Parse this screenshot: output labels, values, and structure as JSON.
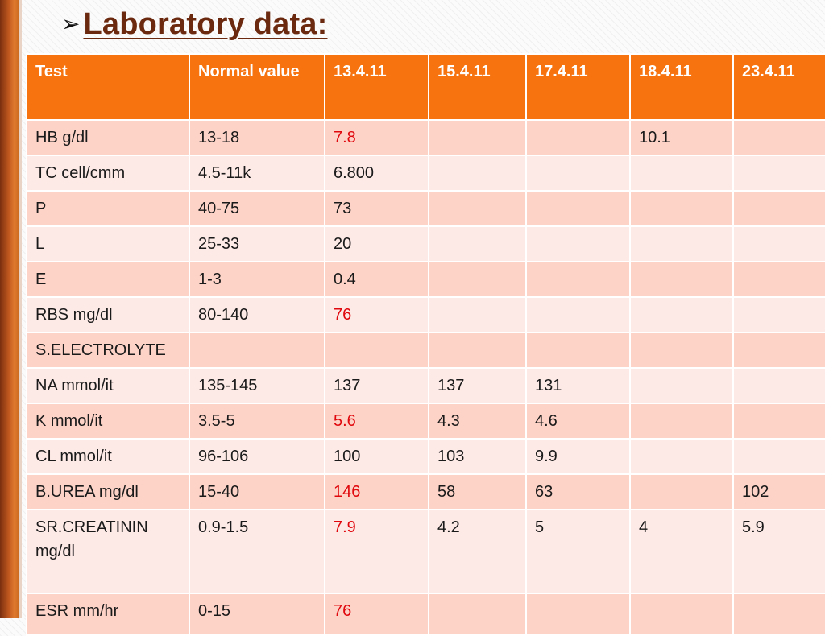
{
  "title": {
    "bullet": "➢",
    "text": "Laboratory data:"
  },
  "table": {
    "headers": [
      "Test",
      "Normal value",
      "13.4.11",
      "15.4.11",
      "17.4.11",
      "18.4.11",
      "23.4.11"
    ],
    "rows": [
      [
        "HB    g/dl",
        "13-18",
        "7.8",
        "",
        "",
        "10.1",
        ""
      ],
      [
        "TC    cell/cmm",
        "4.5-11k",
        "6.800",
        "",
        "",
        "",
        ""
      ],
      [
        "P",
        "40-75",
        "73",
        "",
        "",
        "",
        ""
      ],
      [
        "L",
        "25-33",
        "20",
        "",
        "",
        "",
        ""
      ],
      [
        "E",
        "1-3",
        "0.4",
        "",
        "",
        "",
        ""
      ],
      [
        "RBS  mg/dl",
        "80-140",
        "76",
        "",
        "",
        "",
        ""
      ],
      [
        "S.ELECTROLYTE",
        "",
        "",
        "",
        "",
        "",
        ""
      ],
      [
        "NA  mmol/it",
        "135-145",
        "137",
        "137",
        "131",
        "",
        ""
      ],
      [
        "K   mmol/it",
        "3.5-5",
        "5.6",
        "4.3",
        "4.6",
        "",
        ""
      ],
      [
        "CL    mmol/it",
        "96-106",
        "100",
        "103",
        "9.9",
        "",
        ""
      ],
      [
        "B.UREA   mg/dl",
        "15-40",
        "146",
        "58",
        "63",
        "",
        "102"
      ],
      [
        "SR.CREATININ mg/dl",
        "0.9-1.5",
        "7.9",
        "4.2",
        "5",
        "4",
        "5.9"
      ],
      [
        "ESR   mm/hr",
        "0-15",
        "76",
        "",
        "",
        "",
        ""
      ]
    ]
  },
  "colors": {
    "header_bg": "#f67310",
    "row_dark": "#fdd3c8",
    "row_light": "#fde9e6",
    "abnormal_text": "#e0080d",
    "title_text": "#6b2a10"
  }
}
